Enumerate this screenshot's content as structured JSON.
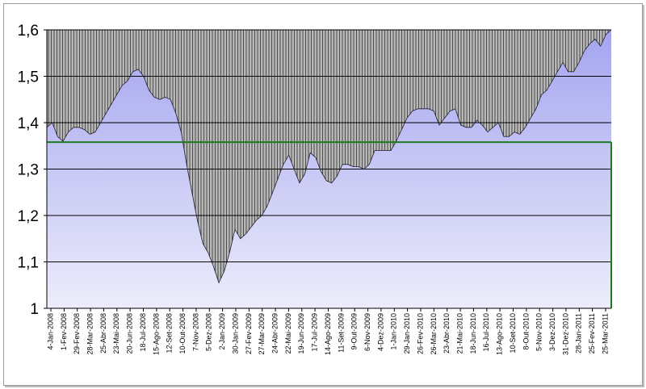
{
  "chart_data": {
    "type": "area",
    "title": "",
    "xlabel": "",
    "ylabel": "",
    "ylim": [
      1,
      1.6
    ],
    "yticks": [
      "1",
      "1,1",
      "1,2",
      "1,3",
      "1,4",
      "1,5",
      "1,6"
    ],
    "grid": true,
    "legend": "none",
    "reference_line": {
      "value": 1.358,
      "color": "#1e7a1e"
    },
    "colors": {
      "area_top": "#a4a4f0",
      "area_bottom": "#ececfb",
      "hatch_background": "#b8b8b8",
      "hatch_line": "#404040",
      "gridline": "#000000"
    },
    "x_labels": [
      "4-Jan-2008",
      "1-Fev-2008",
      "29-Fev-2008",
      "28-Mar-2008",
      "25-Abr-2008",
      "23-Mai-2008",
      "20-Jun-2008",
      "18-Jul-2008",
      "15-Ago-2008",
      "12-Set-2008",
      "10-Out-2008",
      "7-Nov-2008",
      "5-Dez-2008",
      "2-Jan-2009",
      "30-Jan-2009",
      "27-Fev-2009",
      "27-Mar-2009",
      "24-Abr-2009",
      "22-Mai-2009",
      "19-Jun-2009",
      "17-Jul-2009",
      "14-Ago-2009",
      "11-Set-2009",
      "9-Out-2009",
      "6-Nov-2009",
      "4-Dez-2009",
      "1-Jan-2010",
      "29-Jan-2010",
      "26-Fev-2010",
      "26-Mar-2010",
      "23-Abr-2010",
      "21-Mai-2010",
      "18-Jun-2010",
      "16-Jul-2010",
      "13-Ago-2010",
      "10-Set-2010",
      "8-Out-2010",
      "5-Nov-2010",
      "3-Dez-2010",
      "31-Dez-2010",
      "28-Jan-2011",
      "25-Fev-2011",
      "25-Mar-2011"
    ],
    "series": [
      {
        "values": [
          1.39,
          1.4,
          1.37,
          1.36,
          1.38,
          1.39,
          1.39,
          1.385,
          1.375,
          1.38,
          1.4,
          1.42,
          1.44,
          1.46,
          1.48,
          1.49,
          1.51,
          1.515,
          1.5,
          1.47,
          1.455,
          1.45,
          1.455,
          1.45,
          1.42,
          1.38,
          1.31,
          1.25,
          1.19,
          1.14,
          1.12,
          1.09,
          1.055,
          1.08,
          1.12,
          1.17,
          1.15,
          1.16,
          1.175,
          1.19,
          1.2,
          1.22,
          1.25,
          1.28,
          1.31,
          1.33,
          1.3,
          1.27,
          1.29,
          1.335,
          1.325,
          1.295,
          1.275,
          1.27,
          1.285,
          1.31,
          1.31,
          1.305,
          1.305,
          1.3,
          1.31,
          1.34,
          1.34,
          1.34,
          1.34,
          1.36,
          1.385,
          1.41,
          1.425,
          1.43,
          1.43,
          1.43,
          1.425,
          1.395,
          1.41,
          1.425,
          1.43,
          1.395,
          1.39,
          1.39,
          1.405,
          1.395,
          1.38,
          1.39,
          1.4,
          1.37,
          1.37,
          1.38,
          1.375,
          1.39,
          1.41,
          1.43,
          1.46,
          1.47,
          1.49,
          1.51,
          1.53,
          1.51,
          1.51,
          1.53,
          1.555,
          1.57,
          1.58,
          1.565,
          1.59,
          1.6
        ]
      }
    ]
  }
}
